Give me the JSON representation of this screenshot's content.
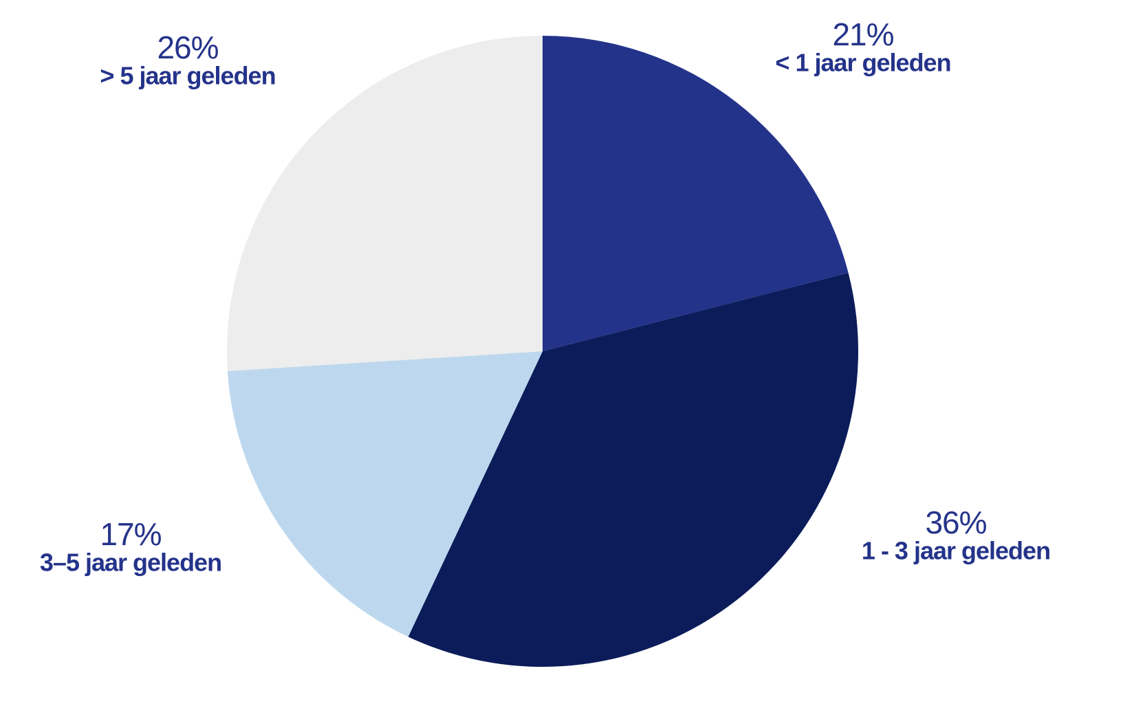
{
  "chart_data": {
    "type": "pie",
    "categories": [
      "< 1 jaar geleden",
      "1 - 3 jaar geleden",
      "3–5 jaar geleden",
      "> 5 jaar geleden"
    ],
    "values": [
      21,
      36,
      17,
      26
    ],
    "value_labels": [
      "21%",
      "36%",
      "17%",
      "26%"
    ],
    "colors": [
      "#24338a",
      "#0c1c5a",
      "#bdd8ee",
      "#ededed"
    ]
  }
}
